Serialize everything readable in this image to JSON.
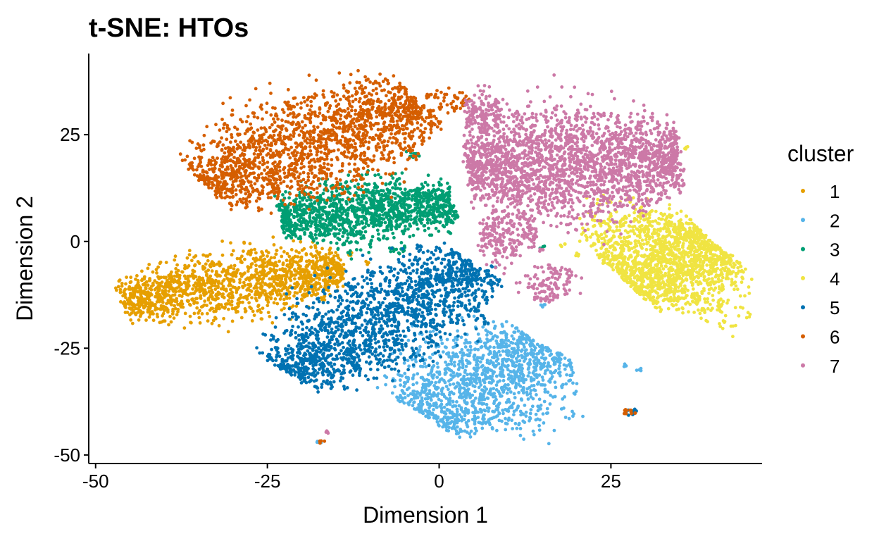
{
  "chart_data": {
    "type": "scatter",
    "title": "t-SNE: HTOs",
    "xlabel": "Dimension 1",
    "ylabel": "Dimension 2",
    "xlim": [
      -51,
      47
    ],
    "ylim": [
      -52,
      44
    ],
    "xticks": [
      -50,
      -25,
      0,
      25
    ],
    "xtick_labels": [
      "-50",
      "-25",
      "0",
      "25"
    ],
    "yticks": [
      -50,
      -25,
      0,
      25
    ],
    "ytick_labels": [
      "-50",
      "-25",
      "0",
      "25"
    ],
    "grid": false,
    "legend": {
      "title": "cluster",
      "position": "right"
    },
    "series": [
      {
        "name": "1",
        "color": "#E69F00",
        "clusters": [
          {
            "x0": -46,
            "y0": -14,
            "x1": -14,
            "y1": -6,
            "width": 8,
            "n": 1400
          }
        ],
        "stray": [
          [
            -13,
            -3
          ],
          [
            -10.5,
            -5
          ]
        ]
      },
      {
        "name": "2",
        "color": "#56B4E9",
        "clusters": [
          {
            "x0": -2,
            "y0": -41,
            "x1": 15,
            "y1": -24,
            "width": 13,
            "n": 1300
          }
        ],
        "stray": [
          [
            27,
            -29
          ],
          [
            29,
            -30
          ],
          [
            -17.5,
            -47
          ],
          [
            15,
            -15
          ]
        ]
      },
      {
        "name": "3",
        "color": "#009E73",
        "clusters": [
          {
            "x0": -23,
            "y0": 5,
            "x1": 2,
            "y1": 9,
            "width": 8,
            "n": 1300
          },
          {
            "x0": -3.8,
            "y0": 20,
            "x1": -3.2,
            "y1": 20.8,
            "width": 1,
            "n": 18
          }
        ],
        "stray": [
          [
            1.5,
            2
          ],
          [
            -7,
            -2
          ],
          [
            -5.5,
            -2.5
          ],
          [
            15,
            -1.5
          ]
        ]
      },
      {
        "name": "4",
        "color": "#F0E442",
        "clusters": [
          {
            "x0": 27,
            "y0": -9,
            "x1": 40,
            "y1": 0,
            "width": 15,
            "n": 1600
          },
          {
            "x0": 21,
            "y0": 2,
            "x1": 33,
            "y1": 6,
            "width": 3,
            "n": 40
          }
        ],
        "stray": [
          [
            18,
            -1
          ],
          [
            20,
            -3
          ],
          [
            36,
            22
          ]
        ]
      },
      {
        "name": "5",
        "color": "#0072B2",
        "clusters": [
          {
            "x0": -22,
            "y0": -31,
            "x1": 5,
            "y1": -5,
            "width": 11,
            "n": 1700
          },
          {
            "x0": 27.5,
            "y0": -40.5,
            "x1": 28.5,
            "y1": -39.5,
            "width": 1,
            "n": 14
          }
        ],
        "stray": [
          [
            -10,
            -7
          ],
          [
            -3,
            -1
          ],
          [
            8,
            -6
          ],
          [
            7,
            -19
          ]
        ]
      },
      {
        "name": "6",
        "color": "#D55E00",
        "clusters": [
          {
            "x0": -34,
            "y0": 13,
            "x1": -3,
            "y1": 33,
            "width": 12,
            "n": 1800
          },
          {
            "x0": -2,
            "y0": 33,
            "x1": 4,
            "y1": 33,
            "width": 3,
            "n": 50
          },
          {
            "x0": 27,
            "y0": -39.5,
            "x1": 28.5,
            "y1": -40.2,
            "width": 1,
            "n": 12
          }
        ],
        "stray": [
          [
            -17,
            -47
          ]
        ]
      },
      {
        "name": "7",
        "color": "#CC79A7",
        "clusters": [
          {
            "x0": 4,
            "y0": 17,
            "x1": 35,
            "y1": 20,
            "width": 14,
            "n": 2300
          },
          {
            "x0": 6,
            "y0": 2,
            "x1": 14,
            "y1": 1,
            "width": 7,
            "n": 220
          },
          {
            "x0": 15,
            "y0": -14,
            "x1": 17,
            "y1": -6,
            "width": 4,
            "n": 130
          },
          {
            "x0": 4,
            "y0": 30,
            "x1": 9,
            "y1": 30,
            "width": 6,
            "n": 150
          }
        ],
        "stray": [
          [
            -16.5,
            -44.5
          ],
          [
            15,
            -2
          ],
          [
            11,
            -3
          ]
        ]
      }
    ]
  }
}
